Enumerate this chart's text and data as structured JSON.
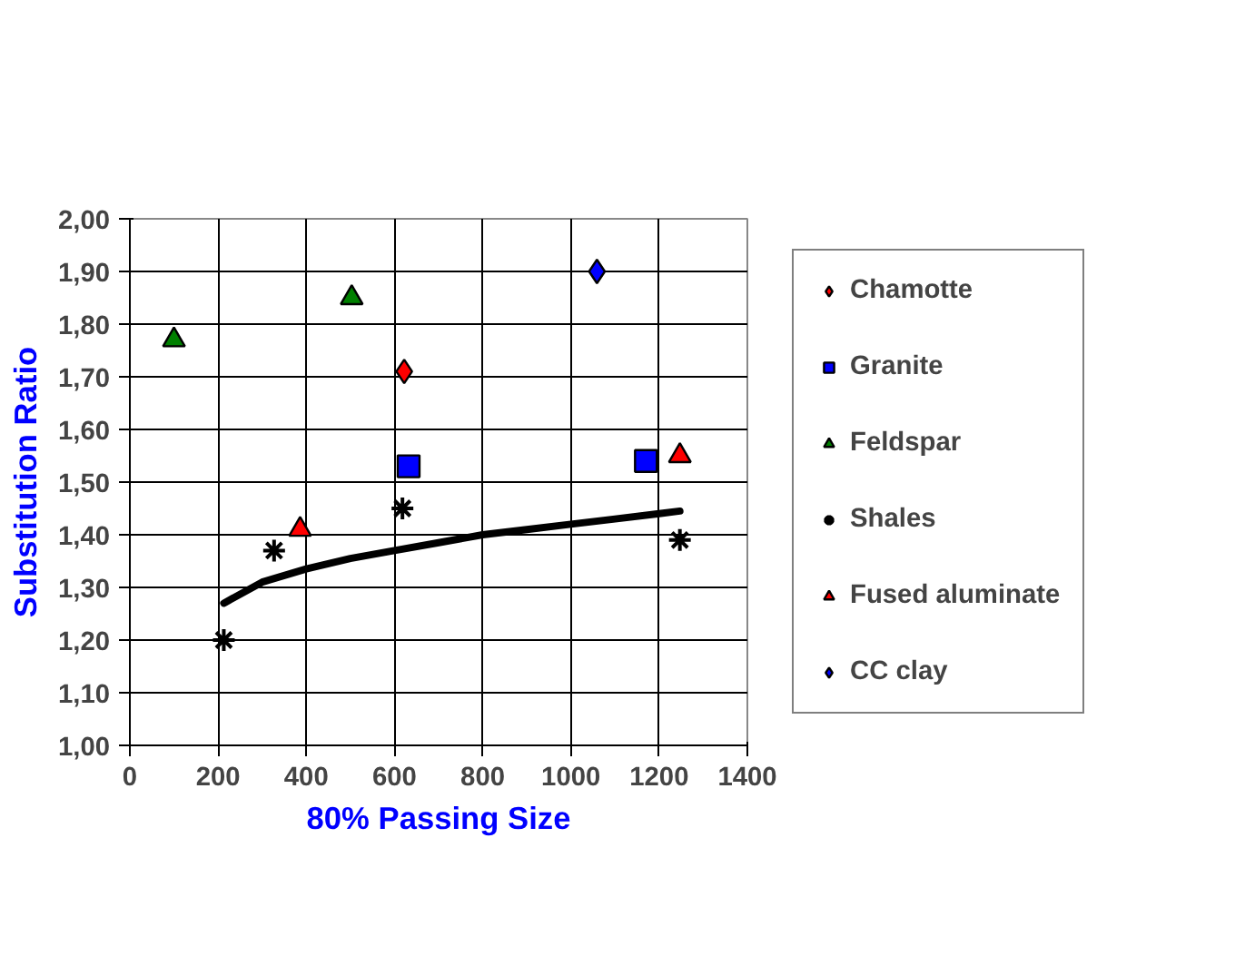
{
  "chart_data": {
    "type": "scatter",
    "xlabel": "80% Passing Size",
    "ylabel": "Substitution Ratio",
    "xlim": [
      0,
      1400
    ],
    "xticks": [
      0,
      200,
      400,
      600,
      800,
      1000,
      1200,
      1400
    ],
    "ylim": [
      1.0,
      2.0
    ],
    "yticks": [
      {
        "value": 1.0,
        "label": "1,00"
      },
      {
        "value": 1.1,
        "label": "1,10"
      },
      {
        "value": 1.2,
        "label": "1,20"
      },
      {
        "value": 1.3,
        "label": "1,30"
      },
      {
        "value": 1.4,
        "label": "1,40"
      },
      {
        "value": 1.5,
        "label": "1,50"
      },
      {
        "value": 1.6,
        "label": "1,60"
      },
      {
        "value": 1.7,
        "label": "1,70"
      },
      {
        "value": 1.8,
        "label": "1,80"
      },
      {
        "value": 1.9,
        "label": "1,90"
      },
      {
        "value": 2.0,
        "label": "2,00"
      }
    ],
    "grid": true,
    "legend": "right",
    "series": [
      {
        "name": "Chamotte",
        "color": "#ff0000",
        "marker": "diamond",
        "x": [
          622
        ],
        "values": [
          1.71
        ]
      },
      {
        "name": "Granite",
        "color": "#0000ff",
        "marker": "square",
        "x": [
          632,
          1170
        ],
        "values": [
          1.53,
          1.54
        ]
      },
      {
        "name": "Feldspar",
        "color": "#008000",
        "marker": "triangle",
        "x": [
          100,
          503
        ],
        "values": [
          1.77,
          1.85
        ]
      },
      {
        "name": "Shales",
        "color": "#000000",
        "marker": "cross",
        "x": [
          213,
          327,
          618,
          1247
        ],
        "values": [
          1.2,
          1.37,
          1.45,
          1.39
        ]
      },
      {
        "name": "Fused aluminate",
        "color": "#ff0000",
        "marker": "triangle",
        "x": [
          386,
          1247
        ],
        "values": [
          1.41,
          1.55
        ]
      },
      {
        "name": "CC clay",
        "color": "#0000ff",
        "marker": "diamond",
        "x": [
          1059
        ],
        "values": [
          1.9
        ]
      },
      {
        "type": "line",
        "color": "#000000",
        "x": [
          213,
          300,
          400,
          500,
          600,
          700,
          800,
          900,
          1000,
          1100,
          1200,
          1247
        ],
        "values": [
          1.27,
          1.31,
          1.335,
          1.355,
          1.37,
          1.385,
          1.4,
          1.41,
          1.42,
          1.43,
          1.44,
          1.445
        ]
      }
    ]
  }
}
